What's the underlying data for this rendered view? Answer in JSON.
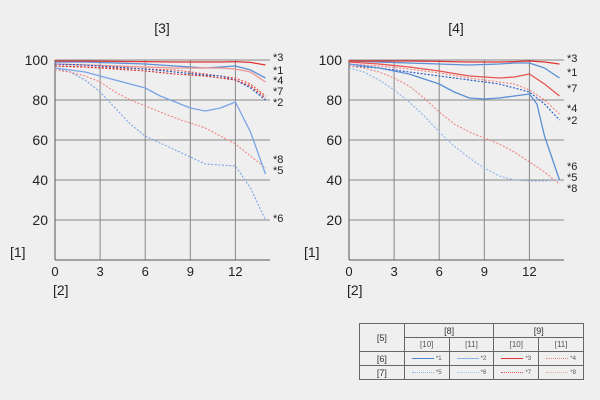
{
  "chart_data": [
    {
      "type": "line",
      "title": "[3]",
      "ylabel": "[1]",
      "xlabel": "[2]",
      "x_ticks": [
        0,
        3,
        6,
        9,
        12
      ],
      "y_ticks": [
        20,
        40,
        60,
        80,
        100
      ],
      "xlim": [
        0,
        14.3
      ],
      "ylim": [
        0,
        100
      ],
      "grid": true,
      "series": [
        {
          "name": "*1",
          "color": "#5b8fd6",
          "dashed": false,
          "x": [
            0,
            2,
            4,
            6,
            8,
            10,
            11,
            12,
            13,
            14
          ],
          "y": [
            99,
            99,
            98.5,
            98,
            97,
            96,
            96.5,
            97,
            95,
            91
          ]
        },
        {
          "name": "*2",
          "color": "#e85450",
          "dashed": true,
          "x": [
            0,
            2,
            4,
            6,
            8,
            10,
            11,
            12,
            13,
            14
          ],
          "y": [
            97,
            96.5,
            96,
            95.5,
            95,
            93,
            92,
            91,
            88,
            82
          ]
        },
        {
          "name": "*3",
          "color": "#e03434",
          "dashed": false,
          "x": [
            0,
            2,
            4,
            6,
            8,
            10,
            11,
            12,
            13,
            14
          ],
          "y": [
            99.5,
            99.5,
            99.3,
            99.2,
            99,
            99,
            99,
            99.2,
            98.8,
            97.5
          ]
        },
        {
          "name": "*4",
          "color": "#f09590",
          "dashed": false,
          "x": [
            0,
            2,
            4,
            6,
            8,
            10,
            11,
            12,
            13,
            14
          ],
          "y": [
            98,
            97.5,
            97,
            96.5,
            96,
            96,
            96,
            95.5,
            94,
            89
          ]
        },
        {
          "name": "*5",
          "color": "#1f55c8",
          "dashed": true,
          "x": [
            0,
            2,
            4,
            6,
            8,
            10,
            11,
            12,
            13,
            14
          ],
          "y": [
            98,
            97.5,
            96.5,
            95.5,
            94,
            92.5,
            92,
            90,
            86,
            80
          ]
        },
        {
          "name": "*6",
          "color": "#7aa4e6",
          "dashed": true,
          "x": [
            0,
            1,
            2,
            3,
            4,
            5,
            6,
            8,
            10,
            12,
            13,
            14
          ],
          "y": [
            96,
            94,
            90,
            84,
            76,
            68,
            62,
            55,
            48,
            47,
            36,
            20
          ]
        },
        {
          "name": "*7",
          "color": "#cc2a2a",
          "dashed": true,
          "x": [
            0,
            2,
            4,
            6,
            8,
            10,
            11,
            12,
            13,
            14
          ],
          "y": [
            97,
            96.5,
            95.5,
            94.5,
            93,
            92,
            91,
            90,
            87,
            81
          ]
        },
        {
          "name": "*8",
          "color": "#ef8680",
          "dashed": true,
          "x": [
            0,
            1,
            2,
            3,
            4,
            5,
            6,
            8,
            10,
            12,
            13,
            14
          ],
          "y": [
            95,
            94,
            92,
            89,
            84,
            80,
            77,
            71,
            66,
            58,
            52,
            46
          ]
        },
        {
          "name": "",
          "color": "#7aa4e6",
          "dashed": false,
          "x": [
            0,
            2,
            4,
            6,
            7,
            8,
            9,
            10,
            11,
            12,
            13,
            14
          ],
          "y": [
            96,
            94,
            90,
            86,
            82,
            79,
            76,
            74.5,
            76,
            79,
            64,
            43
          ]
        }
      ],
      "annotations": [
        "*3",
        "*1",
        "*4",
        "*7",
        "*2",
        "*8",
        "*5",
        "*6"
      ]
    },
    {
      "type": "line",
      "title": "[4]",
      "ylabel": "[1]",
      "xlabel": "[2]",
      "x_ticks": [
        0,
        3,
        6,
        9,
        12
      ],
      "y_ticks": [
        20,
        40,
        60,
        80,
        100
      ],
      "xlim": [
        0,
        14.3
      ],
      "ylim": [
        0,
        100
      ],
      "grid": true,
      "series": [
        {
          "name": "*1",
          "color": "#5b8fd6",
          "dashed": false,
          "x": [
            0,
            2,
            4,
            6,
            8,
            10,
            11,
            12,
            13,
            14
          ],
          "y": [
            99.5,
            99,
            98.5,
            98,
            97.5,
            98,
            98.5,
            98.5,
            96,
            91
          ]
        },
        {
          "name": "*2",
          "color": "#1f55c8",
          "dashed": true,
          "x": [
            0,
            2,
            4,
            6,
            8,
            10,
            11,
            12,
            13,
            14
          ],
          "y": [
            97,
            96,
            94,
            92,
            90,
            88,
            86,
            84,
            78,
            70
          ]
        },
        {
          "name": "*3",
          "color": "#e03434",
          "dashed": false,
          "x": [
            0,
            2,
            4,
            6,
            8,
            10,
            11,
            12,
            13,
            14
          ],
          "y": [
            99.5,
            99.5,
            99.5,
            99.3,
            99,
            99,
            99.2,
            99.5,
            99,
            98
          ]
        },
        {
          "name": "*4",
          "color": "#ef8680",
          "dashed": true,
          "x": [
            0,
            2,
            4,
            6,
            8,
            10,
            11,
            12,
            13,
            14
          ],
          "y": [
            98,
            97,
            95.5,
            93.5,
            91,
            89,
            88,
            85,
            80,
            73
          ]
        },
        {
          "name": "*5",
          "color": "#8fb3ea",
          "dashed": true,
          "x": [
            0,
            1,
            2,
            3,
            4,
            5,
            6,
            7,
            8,
            9,
            10,
            11,
            12,
            13,
            14
          ],
          "y": [
            96,
            94,
            90,
            85,
            79,
            72,
            64,
            57,
            51,
            46,
            42,
            40,
            39.5,
            39.5,
            40
          ]
        },
        {
          "name": "*6",
          "color": "#5b8fd6",
          "dashed": false,
          "x": [
            0,
            2,
            4,
            6,
            7,
            8,
            9,
            10,
            11,
            12,
            12.5,
            13,
            14
          ],
          "y": [
            98,
            96,
            93,
            88,
            84,
            81,
            80.5,
            81,
            82,
            83,
            78,
            62,
            40
          ]
        },
        {
          "name": "*7",
          "color": "#e85450",
          "dashed": false,
          "x": [
            0,
            2,
            4,
            6,
            8,
            10,
            11,
            12,
            13,
            14
          ],
          "y": [
            99,
            98,
            96.5,
            94.5,
            92,
            91,
            91.5,
            93,
            88,
            82
          ]
        },
        {
          "name": "*8",
          "color": "#ef8680",
          "dashed": true,
          "x": [
            0,
            1,
            2,
            3,
            4,
            5,
            6,
            7,
            8,
            9,
            10,
            11,
            12,
            13,
            14
          ],
          "y": [
            97,
            96,
            94,
            91,
            87,
            81,
            74,
            68,
            64,
            61,
            58,
            54,
            49,
            44,
            38
          ]
        }
      ],
      "annotations": [
        "*3",
        "*1",
        "*7",
        "*4",
        "*2",
        "*6",
        "*5",
        "*8"
      ]
    }
  ],
  "legend_table": {
    "header_5": "[5]",
    "header_8": "[8]",
    "header_9": "[9]",
    "sub_10a": "[10]",
    "sub_11a": "[11]",
    "sub_10b": "[10]",
    "sub_11b": "[11]",
    "row_6": "[6]",
    "row_7": "[7]",
    "entries": [
      {
        "label": "*1",
        "color": "#4f86d2",
        "dashed": false
      },
      {
        "label": "*2",
        "color": "#8fb3ea",
        "dashed": false
      },
      {
        "label": "*3",
        "color": "#e03434",
        "dashed": false
      },
      {
        "label": "*4",
        "color": "#ef8680",
        "dashed": true
      },
      {
        "label": "*5",
        "color": "#8fb3ea",
        "dashed": true
      },
      {
        "label": "*6",
        "color": "#a9c4ee",
        "dashed": true
      },
      {
        "label": "*7",
        "color": "#e85450",
        "dashed": true
      },
      {
        "label": "*8",
        "color": "#f3aaa6",
        "dashed": true
      }
    ]
  }
}
